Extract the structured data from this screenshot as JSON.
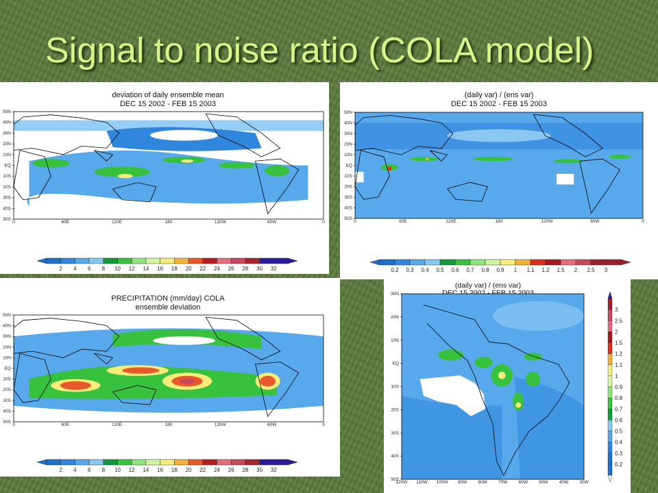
{
  "slide": {
    "title": "Signal to noise ratio (COLA model)"
  },
  "colors": {
    "ocean_blue": "#2f7dcf",
    "light_blue": "#6fb6ee",
    "green": "#2db32d",
    "yellow": "#f5e870",
    "red": "#d42020"
  },
  "chart_data": [
    {
      "type": "heatmap",
      "title": "deviation of daily ensemble mean",
      "subtitle": "DEC 15 2002 - FEB 15 2003",
      "x_ticks": [
        "0",
        "60E",
        "120E",
        "180",
        "120W",
        "60W",
        "0"
      ],
      "y_ticks": [
        "50N",
        "40N",
        "30N",
        "20N",
        "10N",
        "EQ",
        "10S",
        "20S",
        "30S",
        "40S",
        "50S"
      ],
      "colorbar": [
        "2",
        "4",
        "6",
        "8",
        "10",
        "12",
        "14",
        "16",
        "18",
        "20",
        "22",
        "24",
        "26",
        "28",
        "30",
        "32"
      ]
    },
    {
      "type": "heatmap",
      "title": "(daily var) / (ens var)",
      "subtitle": "DEC 15 2002 - FEB 15 2003",
      "x_ticks": [
        "0",
        "60E",
        "120E",
        "180",
        "120W",
        "60W",
        "0"
      ],
      "y_ticks": [
        "50N",
        "40N",
        "30N",
        "20N",
        "10N",
        "EQ",
        "10S",
        "20S",
        "30S",
        "40S",
        "50S"
      ],
      "colorbar": [
        "0.2",
        "0.3",
        "0.4",
        "0.5",
        "0.6",
        "0.7",
        "0.8",
        "0.9",
        "1",
        "1.1",
        "1.2",
        "1.5",
        "2",
        "2.5",
        "3"
      ]
    },
    {
      "type": "heatmap",
      "title": "PRECIPITATION (mm/day) COLA",
      "subtitle": "ensemble deviation",
      "x_ticks": [
        "0",
        "60E",
        "120E",
        "180",
        "120W",
        "60W",
        "0"
      ],
      "y_ticks": [
        "50N",
        "40N",
        "30N",
        "20N",
        "10N",
        "EQ",
        "10S",
        "20S",
        "30S",
        "40S",
        "50S"
      ],
      "colorbar": [
        "2",
        "4",
        "6",
        "8",
        "10",
        "12",
        "14",
        "16",
        "18",
        "20",
        "22",
        "24",
        "26",
        "28",
        "30",
        "32"
      ]
    },
    {
      "type": "heatmap",
      "title": "(daily var) / (ens var)",
      "subtitle": "DEC 15 2002 - FEB 15 2003",
      "x_ticks": [
        "120W",
        "110W",
        "100W",
        "90W",
        "80W",
        "70W",
        "60W",
        "50W",
        "40W",
        "30W"
      ],
      "y_ticks": [
        "30N",
        "20N",
        "10N",
        "EQ",
        "10S",
        "20S",
        "30S",
        "40S",
        "50S"
      ],
      "colorbar": [
        "3",
        "2.5",
        "2",
        "1.5",
        "1.2",
        "1.1",
        "1",
        "0.9",
        "0.8",
        "0.7",
        "0.6",
        "0.5",
        "0.4",
        "0.3",
        "0.2"
      ]
    }
  ]
}
